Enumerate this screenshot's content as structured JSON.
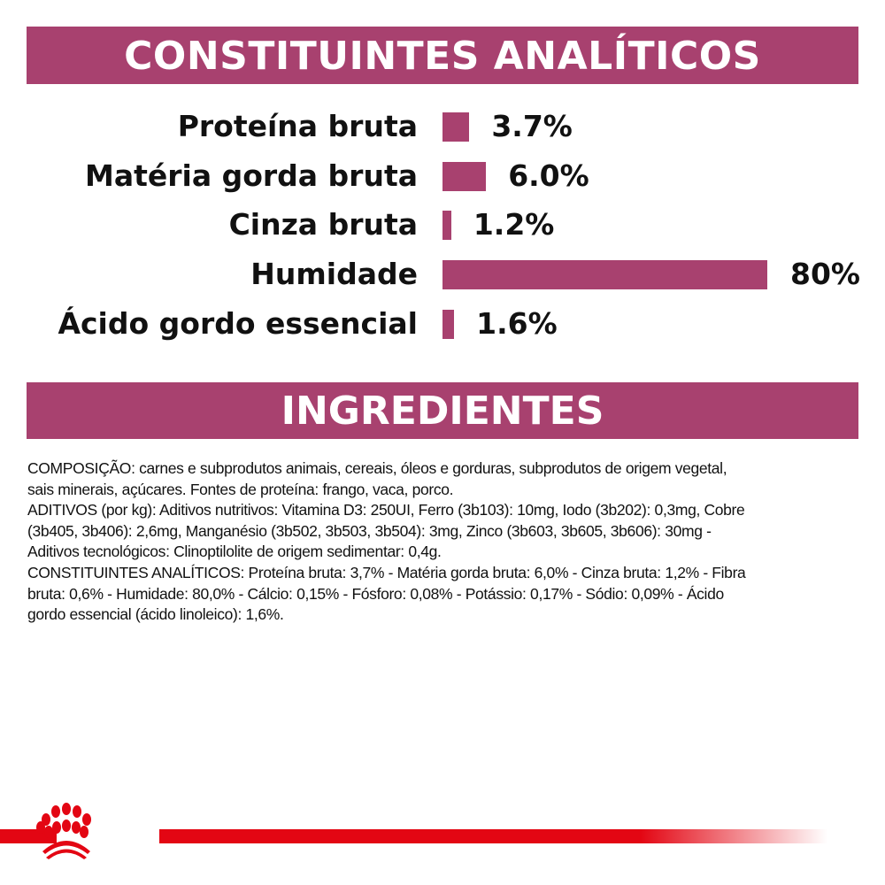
{
  "colors": {
    "accent": "#a8416f",
    "brand_red": "#e30613"
  },
  "logo": {
    "name": "royal-canin-crown-logo",
    "icon": "crown-paw-icon"
  },
  "chart_data": {
    "type": "bar",
    "orientation": "horizontal",
    "title": "CONSTITUINTES ANALÍTICOS",
    "categories": [
      "Proteína bruta",
      "Matéria gorda bruta",
      "Cinza bruta",
      "Humidade",
      "Ácido gordo essencial"
    ],
    "values": [
      3.7,
      6.0,
      1.2,
      80,
      1.6
    ],
    "value_labels": [
      "3.7%",
      "6.0%",
      "1.2%",
      "80%",
      "1.6%"
    ],
    "unit": "%",
    "grid": false,
    "bar_color": "#a8416f"
  },
  "ingredients": {
    "title": "INGREDIENTES",
    "lines": [
      "COMPOSIÇÃO: carnes e subprodutos animais, cereais, óleos e gorduras, subprodutos de origem vegetal,",
      "sais minerais, açúcares. Fontes de proteína: frango, vaca, porco.",
      "ADITIVOS (por kg): Aditivos nutritivos: Vitamina D3: 250UI, Ferro (3b103): 10mg, Iodo (3b202): 0,3mg, Cobre",
      "(3b405, 3b406): 2,6mg, Manganésio (3b502, 3b503, 3b504): 3mg, Zinco (3b603, 3b605, 3b606): 30mg -",
      "Aditivos tecnológicos: Clinoptilolite de origem sedimentar: 0,4g.",
      "CONSTITUINTES ANALÍTICOS: Proteína bruta: 3,7% - Matéria gorda bruta: 6,0% - Cinza bruta: 1,2% - Fibra",
      "bruta: 0,6% - Humidade: 80,0% - Cálcio: 0,15% - Fósforo: 0,08% - Potássio: 0,17% - Sódio: 0,09% - Ácido",
      "gordo essencial (ácido linoleico): 1,6%."
    ]
  }
}
